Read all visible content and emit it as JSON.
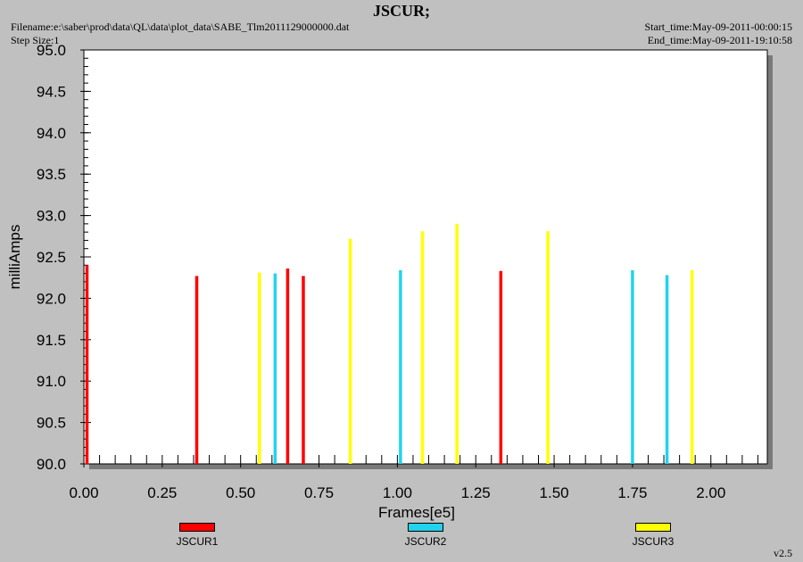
{
  "header": {
    "title": "JSCUR;",
    "filename": "Filename:e:\\saber\\prod\\data\\QL\\data\\plot_data\\SABE_Tlm2011129000000.dat",
    "step_size": "Step Size:1",
    "start_time": "Start_time:May-09-2011-00:00:15",
    "end_time": "End_time:May-09-2011-19:10:58"
  },
  "footer": {
    "version": "v2.5"
  },
  "chart_data": {
    "type": "bar",
    "xlabel": "Frames[e5]",
    "ylabel": "milliAmps",
    "xlim": [
      0,
      2.18
    ],
    "ylim": [
      90.0,
      95.0
    ],
    "xticks": [
      "0.00",
      "0.25",
      "0.50",
      "0.75",
      "1.00",
      "1.25",
      "1.50",
      "1.75",
      "2.00"
    ],
    "yticks": [
      "90.0",
      "90.5",
      "91.0",
      "91.5",
      "92.0",
      "92.5",
      "93.0",
      "93.5",
      "94.0",
      "94.5",
      "95.0"
    ],
    "legend_position": "bottom",
    "series": [
      {
        "name": "JSCUR1",
        "color": "#ff0000",
        "x": [
          0.01,
          0.36,
          0.65,
          0.7,
          1.33
        ],
        "values": [
          92.4,
          92.27,
          92.36,
          92.27,
          92.33
        ]
      },
      {
        "name": "JSCUR2",
        "color": "#22d3ee",
        "x": [
          0.61,
          1.01,
          1.75,
          1.86
        ],
        "values": [
          92.3,
          92.34,
          92.34,
          92.28
        ]
      },
      {
        "name": "JSCUR3",
        "color": "#ffff00",
        "x": [
          0.56,
          0.85,
          1.08,
          1.19,
          1.48,
          1.94
        ],
        "values": [
          92.31,
          92.72,
          92.81,
          92.9,
          92.81,
          92.34
        ]
      }
    ]
  }
}
